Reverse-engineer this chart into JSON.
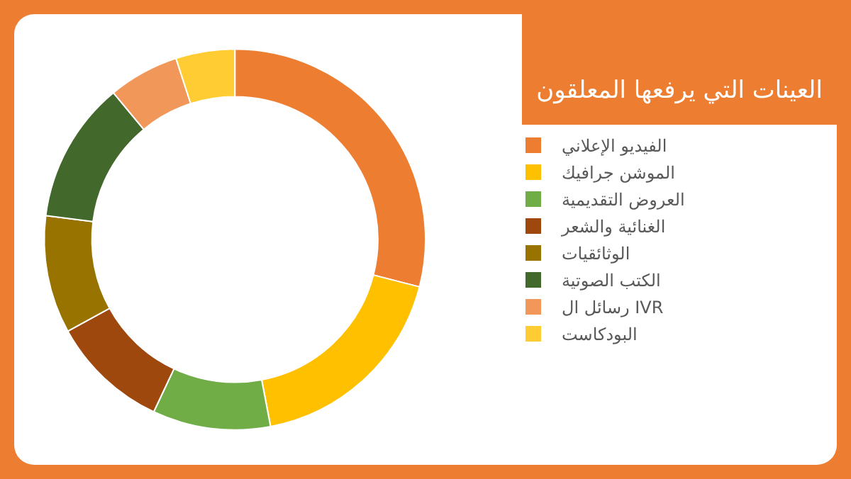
{
  "chart_data": {
    "type": "donut",
    "title": "العينات التي يرفعها المعلقون",
    "categories": [
      "الفيديو الإعلاني",
      "الموشن جرافيك",
      "العروض التقديمية",
      "الغنائية والشعر",
      "الوثائقيات",
      "الكتب الصوتية",
      "رسائل ال IVR",
      "البودكاست"
    ],
    "values": [
      29,
      18,
      10,
      10,
      10,
      12,
      6,
      5
    ],
    "colors": [
      "#ed7d31",
      "#ffc000",
      "#70ad47",
      "#9e480e",
      "#997300",
      "#43682b",
      "#f1975a",
      "#ffcd33"
    ],
    "legend": "right"
  }
}
